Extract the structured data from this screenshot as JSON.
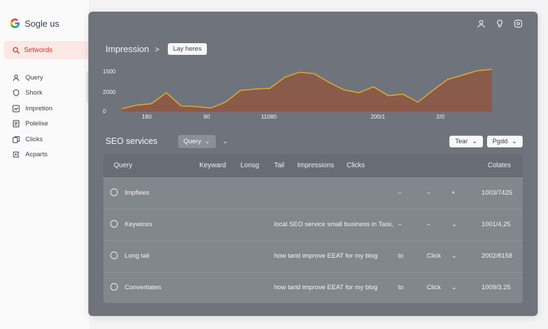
{
  "brand": {
    "name": "Sogle us"
  },
  "sidebar": {
    "active": {
      "label": "Setwords"
    },
    "items": [
      {
        "label": "Query",
        "icon": "user-icon"
      },
      {
        "label": "Shork",
        "icon": "shield-icon"
      },
      {
        "label": "Impretion",
        "icon": "chart-icon"
      },
      {
        "label": "Polelise",
        "icon": "document-icon"
      },
      {
        "label": "Clicks",
        "icon": "copy-icon"
      },
      {
        "label": "Acparts",
        "icon": "badge-icon"
      }
    ]
  },
  "header": {
    "title": "Impression",
    "separator": ">",
    "pill": "Lay heres",
    "icons": [
      "person-icon",
      "bulb-icon",
      "settings-icon"
    ]
  },
  "chart_data": {
    "type": "area",
    "y_ticks": [
      "1500",
      "2000",
      "0"
    ],
    "x_ticks": [
      "180",
      "90",
      "11080",
      "2/0",
      "2/0"
    ],
    "x_tick_labels_raw": [
      "180",
      "90",
      "11080",
      "200/1",
      "2/0"
    ],
    "values": [
      4,
      9,
      11,
      26,
      8,
      7,
      5,
      13,
      29,
      31,
      32,
      47,
      54,
      52,
      40,
      30,
      26,
      34,
      22,
      24,
      13,
      29,
      44,
      50,
      56,
      58
    ],
    "ylim": [
      0,
      60
    ],
    "colors": {
      "line": "#e2a52a",
      "fill": "#8a5a4b"
    }
  },
  "section": {
    "title": "SEO services",
    "query_button": "Query",
    "extra_chevron": "⌄",
    "right_buttons": [
      "Tear",
      "Pgdd"
    ]
  },
  "table": {
    "columns": [
      "Query",
      "Keyward",
      "Lonsg",
      "Tail",
      "Impressions",
      "Clicks",
      "Colates"
    ],
    "rows": [
      {
        "name": "Impfiees",
        "text": "",
        "col_a": "–",
        "col_b": "–",
        "col_c": "+",
        "value": "1003/7425"
      },
      {
        "name": "Keywices",
        "text": "local SEO service small business in Taisi,",
        "col_a": "–",
        "col_b": "–",
        "col_c": "⌄",
        "value": "1001/4,25"
      },
      {
        "name": "Long tail",
        "text": "how tarid improve EEAT for my blog",
        "col_a": "to",
        "col_b": "Click",
        "col_c": "⌄",
        "value": "2002/8158"
      },
      {
        "name": "Convertiates",
        "text": "how tarid improve EEAT for my blog",
        "col_a": "to",
        "col_b": "Click",
        "col_c": "⌄",
        "value": "1009/3.25"
      }
    ]
  }
}
